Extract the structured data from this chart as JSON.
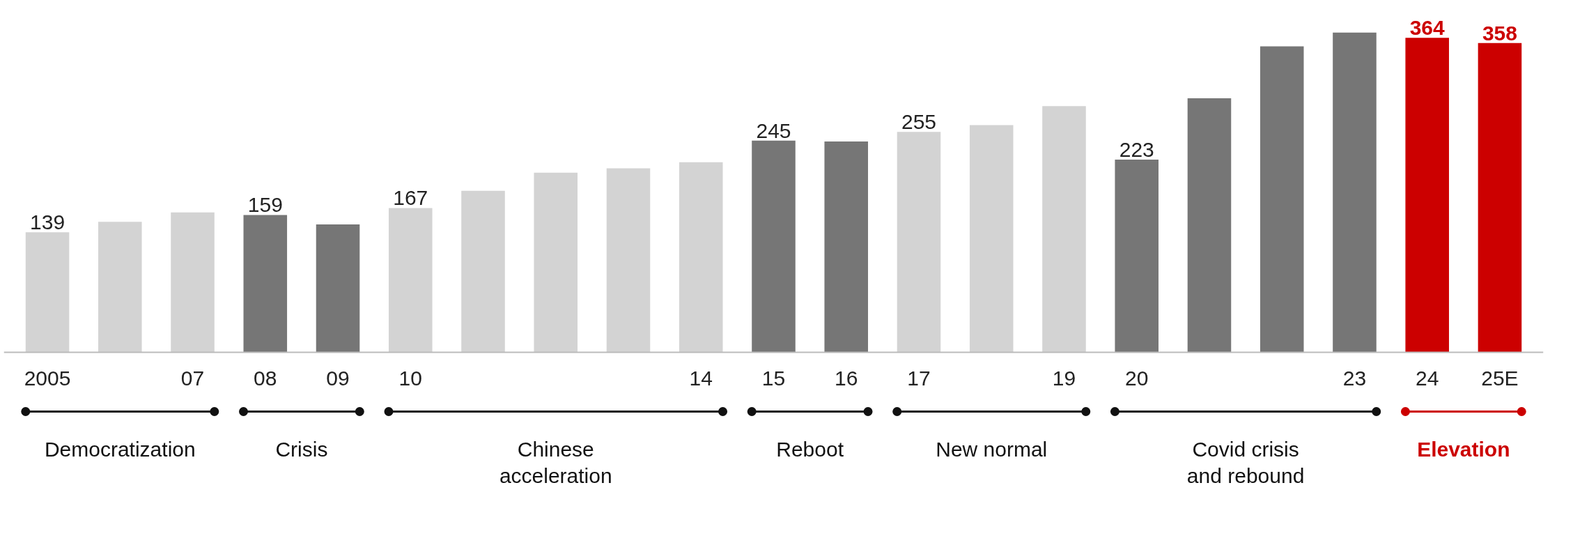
{
  "chart_data": {
    "type": "bar",
    "categories": [
      "2005",
      null,
      "07",
      "08",
      "09",
      "10",
      null,
      null,
      null,
      "14",
      "15",
      "16",
      "17",
      null,
      "19",
      "20",
      null,
      null,
      "23",
      "24",
      "25E"
    ],
    "values": [
      139,
      151,
      162,
      159,
      148,
      167,
      187,
      208,
      213,
      220,
      245,
      244,
      255,
      263,
      285,
      223,
      294,
      354,
      370,
      364,
      358
    ],
    "colors": [
      "#d3d3d3",
      "#d3d3d3",
      "#d3d3d3",
      "#767676",
      "#767676",
      "#d3d3d3",
      "#d3d3d3",
      "#d3d3d3",
      "#d3d3d3",
      "#d3d3d3",
      "#767676",
      "#767676",
      "#d3d3d3",
      "#d3d3d3",
      "#d3d3d3",
      "#767676",
      "#767676",
      "#767676",
      "#767676",
      "#cc0000",
      "#cc0000"
    ],
    "value_labels": [
      "139",
      null,
      null,
      "159",
      null,
      "167",
      null,
      null,
      null,
      null,
      "245",
      null,
      "255",
      null,
      null,
      "223",
      null,
      null,
      null,
      "364",
      "358"
    ],
    "annotations": [
      "Democratization",
      "Crisis",
      "Chinese\nacceleration",
      "Reboot",
      "New normal",
      "Covid crisis\nand rebound",
      "Elevation"
    ],
    "grid": false
  }
}
